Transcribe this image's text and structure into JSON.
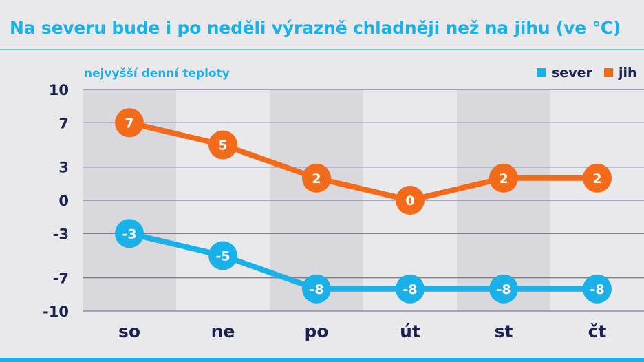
{
  "title": "Na severu bude i po neděli výrazně chladněji než na jihu (ve °C)",
  "colors": {
    "sever": "#1ab0e8",
    "jih": "#f26b1b",
    "axis_text": "#1a2350",
    "title": "#1ab0e8",
    "band_dark": "#d9d9dd",
    "band_light": "#e9e9ec",
    "grid": "#7a7f98"
  },
  "chart_data": {
    "type": "line",
    "subtitle": "nejvyšší denní teploty",
    "categories": [
      "so",
      "ne",
      "po",
      "út",
      "st",
      "čt"
    ],
    "y_ticks": [
      "10",
      "7",
      "3",
      "0",
      "-3",
      "-7",
      "-10"
    ],
    "ylim": [
      -10,
      10
    ],
    "grid": true,
    "legend_position": "top-right",
    "series": [
      {
        "name": "sever",
        "color": "#1ab0e8",
        "values": [
          -3,
          -5,
          -8,
          -8,
          -8,
          -8
        ],
        "labels": [
          "-3",
          "-5",
          "-8",
          "-8",
          "-8",
          "-8"
        ]
      },
      {
        "name": "jih",
        "color": "#f26b1b",
        "values": [
          7,
          5,
          2,
          0,
          2,
          2
        ],
        "labels": [
          "7",
          "5",
          "2",
          "0",
          "2",
          "2"
        ]
      }
    ]
  }
}
